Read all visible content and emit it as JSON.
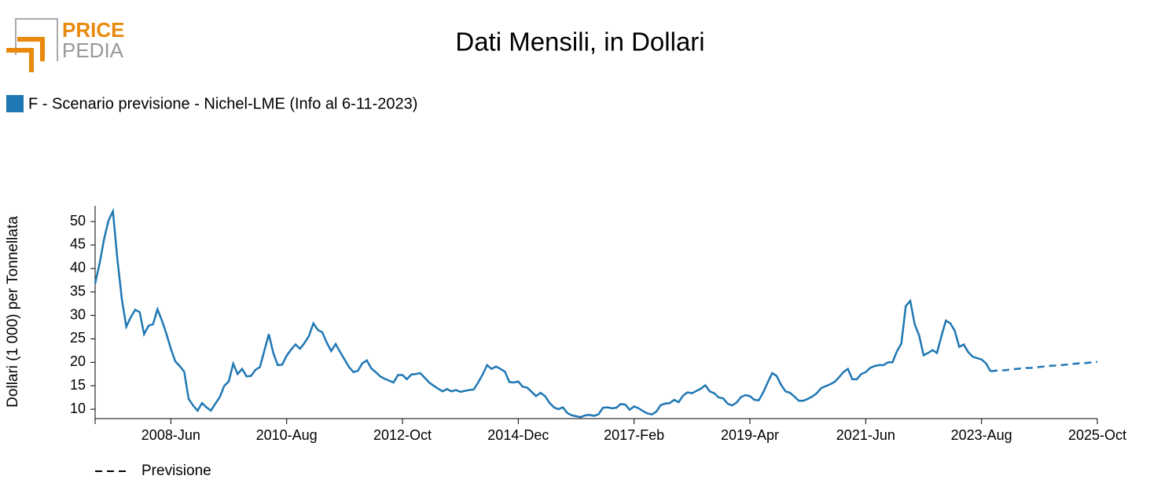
{
  "logo": {
    "top": "PRICE",
    "bottom": "PEDIA"
  },
  "chart_data": {
    "type": "line",
    "title": "Dati Mensili, in Dollari",
    "y_label": "Dollari (1 000) per Tonnellata",
    "xlim": [
      "2007-01",
      "2025-10"
    ],
    "xticks": [
      {
        "value": "2008-06",
        "label": "2008-Jun"
      },
      {
        "value": "2010-08",
        "label": "2010-Aug"
      },
      {
        "value": "2012-10",
        "label": "2012-Oct"
      },
      {
        "value": "2014-12",
        "label": "2014-Dec"
      },
      {
        "value": "2017-02",
        "label": "2017-Feb"
      },
      {
        "value": "2019-04",
        "label": "2019-Apr"
      },
      {
        "value": "2021-06",
        "label": "2021-Jun"
      },
      {
        "value": "2023-08",
        "label": "2023-Aug"
      },
      {
        "value": "2025-10",
        "label": "2025-Oct"
      }
    ],
    "ylim": [
      8,
      53.2
    ],
    "yticks": [
      10,
      15,
      20,
      25,
      30,
      35,
      40,
      45,
      50
    ],
    "series": [
      {
        "name": "F - Scenario previsione - Nichel-LME (Info al 6-11-2023)",
        "color": "#1f77b4",
        "dashed": false,
        "x": [
          "2007-01",
          "2007-02",
          "2007-03",
          "2007-04",
          "2007-05",
          "2007-06",
          "2007-07",
          "2007-08",
          "2007-09",
          "2007-10",
          "2007-11",
          "2007-12",
          "2008-01",
          "2008-02",
          "2008-03",
          "2008-04",
          "2008-05",
          "2008-06",
          "2008-07",
          "2008-08",
          "2008-09",
          "2008-10",
          "2008-11",
          "2008-12",
          "2009-01",
          "2009-02",
          "2009-03",
          "2009-04",
          "2009-05",
          "2009-06",
          "2009-07",
          "2009-08",
          "2009-09",
          "2009-10",
          "2009-11",
          "2009-12",
          "2010-01",
          "2010-02",
          "2010-03",
          "2010-04",
          "2010-05",
          "2010-06",
          "2010-07",
          "2010-08",
          "2010-09",
          "2010-10",
          "2010-11",
          "2010-12",
          "2011-01",
          "2011-02",
          "2011-03",
          "2011-04",
          "2011-05",
          "2011-06",
          "2011-07",
          "2011-08",
          "2011-09",
          "2011-10",
          "2011-11",
          "2011-12",
          "2012-01",
          "2012-02",
          "2012-03",
          "2012-04",
          "2012-05",
          "2012-06",
          "2012-07",
          "2012-08",
          "2012-09",
          "2012-10",
          "2012-11",
          "2012-12",
          "2013-01",
          "2013-02",
          "2013-03",
          "2013-04",
          "2013-05",
          "2013-06",
          "2013-07",
          "2013-08",
          "2013-09",
          "2013-10",
          "2013-11",
          "2013-12",
          "2014-01",
          "2014-02",
          "2014-03",
          "2014-04",
          "2014-05",
          "2014-06",
          "2014-07",
          "2014-08",
          "2014-09",
          "2014-10",
          "2014-11",
          "2014-12",
          "2015-01",
          "2015-02",
          "2015-03",
          "2015-04",
          "2015-05",
          "2015-06",
          "2015-07",
          "2015-08",
          "2015-09",
          "2015-10",
          "2015-11",
          "2015-12",
          "2016-01",
          "2016-02",
          "2016-03",
          "2016-04",
          "2016-05",
          "2016-06",
          "2016-07",
          "2016-08",
          "2016-09",
          "2016-10",
          "2016-11",
          "2016-12",
          "2017-01",
          "2017-02",
          "2017-03",
          "2017-04",
          "2017-05",
          "2017-06",
          "2017-07",
          "2017-08",
          "2017-09",
          "2017-10",
          "2017-11",
          "2017-12",
          "2018-01",
          "2018-02",
          "2018-03",
          "2018-04",
          "2018-05",
          "2018-06",
          "2018-07",
          "2018-08",
          "2018-09",
          "2018-10",
          "2018-11",
          "2018-12",
          "2019-01",
          "2019-02",
          "2019-03",
          "2019-04",
          "2019-05",
          "2019-06",
          "2019-07",
          "2019-08",
          "2019-09",
          "2019-10",
          "2019-11",
          "2019-12",
          "2020-01",
          "2020-02",
          "2020-03",
          "2020-04",
          "2020-05",
          "2020-06",
          "2020-07",
          "2020-08",
          "2020-09",
          "2020-10",
          "2020-11",
          "2020-12",
          "2021-01",
          "2021-02",
          "2021-03",
          "2021-04",
          "2021-05",
          "2021-06",
          "2021-07",
          "2021-08",
          "2021-09",
          "2021-10",
          "2021-11",
          "2021-12",
          "2022-01",
          "2022-02",
          "2022-03",
          "2022-04",
          "2022-05",
          "2022-06",
          "2022-07",
          "2022-08",
          "2022-09",
          "2022-10",
          "2022-11",
          "2022-12",
          "2023-01",
          "2023-02",
          "2023-03",
          "2023-04",
          "2023-05",
          "2023-06",
          "2023-07",
          "2023-08",
          "2023-09",
          "2023-10"
        ],
        "values": [
          36.8,
          41.0,
          46.2,
          50.2,
          52.2,
          42.0,
          33.5,
          27.6,
          29.6,
          31.2,
          30.7,
          26.0,
          27.8,
          28.1,
          31.3,
          28.9,
          26.1,
          22.9,
          20.2,
          19.2,
          18.0,
          12.2,
          10.8,
          9.7,
          11.3,
          10.4,
          9.7,
          11.2,
          12.6,
          15.0,
          15.9,
          19.7,
          17.5,
          18.6,
          17.0,
          17.1,
          18.4,
          19.0,
          22.5,
          26.0,
          22.0,
          19.4,
          19.5,
          21.4,
          22.7,
          23.8,
          22.9,
          24.1,
          25.6,
          28.3,
          26.9,
          26.4,
          24.2,
          22.4,
          23.9,
          22.2,
          20.6,
          19.0,
          17.9,
          18.2,
          19.8,
          20.4,
          18.7,
          17.9,
          17.0,
          16.5,
          16.1,
          15.7,
          17.3,
          17.3,
          16.4,
          17.4,
          17.5,
          17.7,
          16.7,
          15.7,
          15.0,
          14.4,
          13.8,
          14.3,
          13.8,
          14.1,
          13.7,
          13.9,
          14.1,
          14.2,
          15.7,
          17.4,
          19.4,
          18.6,
          19.1,
          18.6,
          18.0,
          15.8,
          15.7,
          15.9,
          14.8,
          14.6,
          13.7,
          12.8,
          13.5,
          12.8,
          11.4,
          10.4,
          10.0,
          10.4,
          9.2,
          8.7,
          8.5,
          8.3,
          8.7,
          8.8,
          8.6,
          8.9,
          10.3,
          10.4,
          10.2,
          10.3,
          11.1,
          11.0,
          9.9,
          10.6,
          10.2,
          9.6,
          9.1,
          8.9,
          9.5,
          10.9,
          11.2,
          11.3,
          12.0,
          11.5,
          12.9,
          13.6,
          13.4,
          13.9,
          14.4,
          15.1,
          13.8,
          13.4,
          12.5,
          12.3,
          11.2,
          10.8,
          11.4,
          12.6,
          13.0,
          12.8,
          12.0,
          11.9,
          13.6,
          15.7,
          17.7,
          17.1,
          15.2,
          13.8,
          13.5,
          12.7,
          11.8,
          11.8,
          12.2,
          12.7,
          13.4,
          14.5,
          14.9,
          15.3,
          15.8,
          16.8,
          17.9,
          18.6,
          16.4,
          16.4,
          17.5,
          17.9,
          18.8,
          19.2,
          19.4,
          19.4,
          20.0,
          20.0,
          22.3,
          24.0,
          32.0,
          33.1,
          28.1,
          25.7,
          21.5,
          22.0,
          22.6,
          22.0,
          25.6,
          28.9,
          28.3,
          26.7,
          23.3,
          23.8,
          22.2,
          21.2,
          20.9,
          20.6,
          19.8,
          18.1
        ]
      },
      {
        "name": "Previsione",
        "color": "#1f77b4",
        "dashed": true,
        "x": [
          "2023-10",
          "2023-11",
          "2023-12",
          "2024-01",
          "2024-02",
          "2024-03",
          "2024-04",
          "2024-05",
          "2024-06",
          "2024-07",
          "2024-08",
          "2024-09",
          "2024-10",
          "2024-11",
          "2024-12",
          "2025-01",
          "2025-02",
          "2025-03",
          "2025-04",
          "2025-05",
          "2025-06",
          "2025-07",
          "2025-08",
          "2025-09",
          "2025-10"
        ],
        "values": [
          18.1,
          18.2,
          18.3,
          18.3,
          18.4,
          18.5,
          18.6,
          18.7,
          18.8,
          18.8,
          18.9,
          19.0,
          19.1,
          19.2,
          19.3,
          19.3,
          19.4,
          19.5,
          19.6,
          19.7,
          19.8,
          19.8,
          19.9,
          20.0,
          20.1
        ]
      }
    ]
  }
}
